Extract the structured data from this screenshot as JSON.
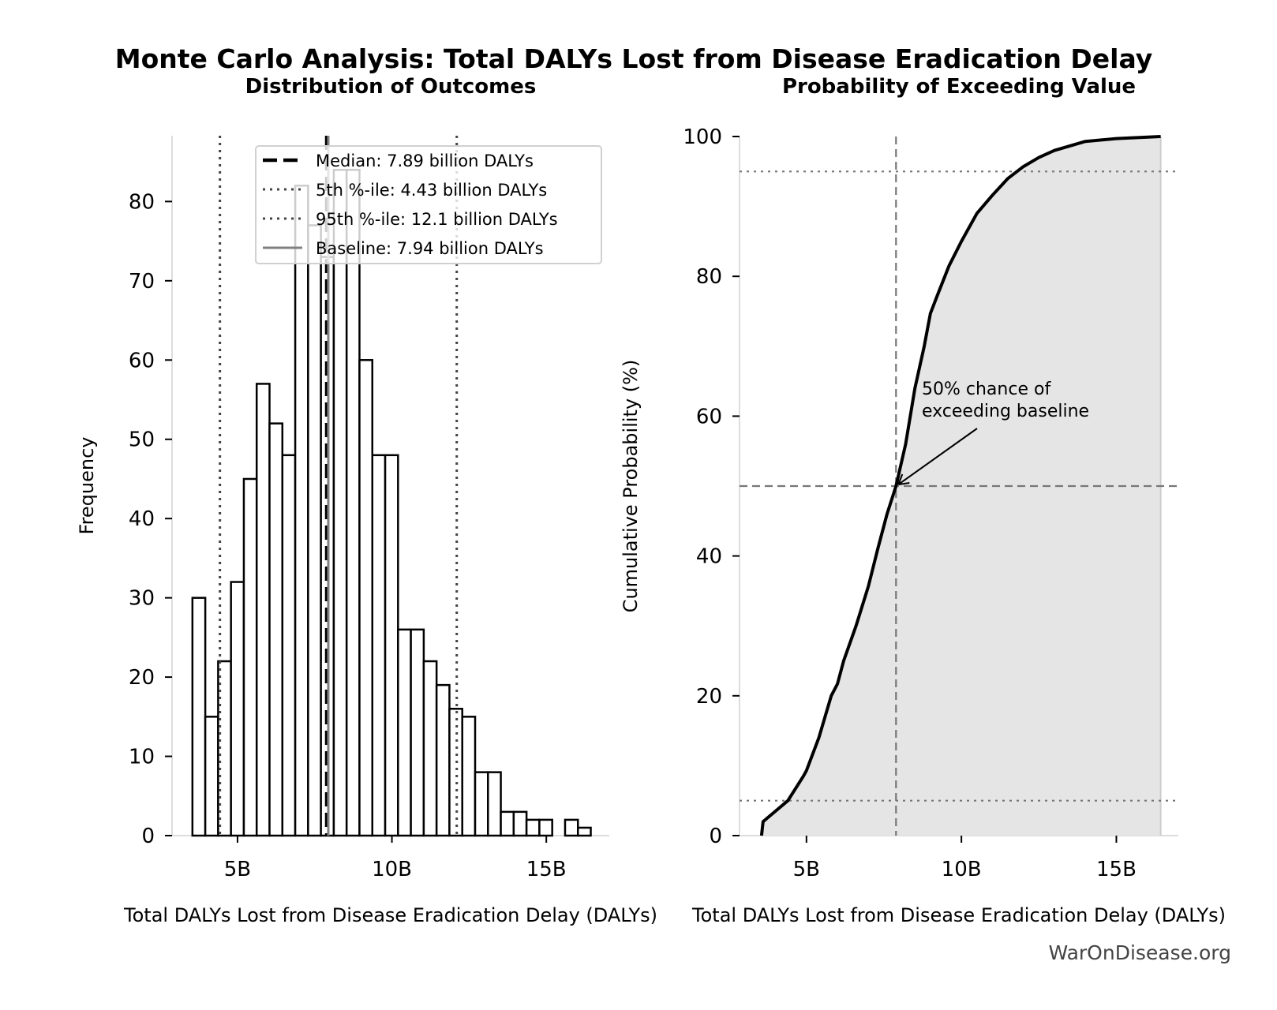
{
  "title": "Monte Carlo Analysis: Total DALYs Lost from Disease Eradication Delay",
  "watermark": "WarOnDisease.org",
  "colors": {
    "bar_edge": "#000000",
    "bar_fill": "#ffffff",
    "cdf_fill": "#e5e5e5",
    "reference_gray": "#777777",
    "spine": "#dddddd"
  },
  "chart_data": [
    {
      "type": "bar",
      "subtype": "histogram",
      "title": "Distribution of Outcomes",
      "xlabel": "Total DALYs Lost from Disease Eradication Delay (DALYs)",
      "ylabel": "Frequency",
      "xlim": [
        2.88,
        17.04
      ],
      "ylim": [
        0,
        88.3
      ],
      "x_unit": "billion DALYs",
      "xticks": [
        {
          "value": 5,
          "label": "5B"
        },
        {
          "value": 10,
          "label": "10B"
        },
        {
          "value": 15,
          "label": "15B"
        }
      ],
      "yticks": [
        0,
        10,
        20,
        30,
        40,
        50,
        60,
        70,
        80
      ],
      "bin_start": 3.54,
      "bin_end": 16.44,
      "counts": [
        30,
        15,
        22,
        32,
        45,
        57,
        52,
        48,
        82,
        77,
        73,
        84,
        84,
        60,
        48,
        48,
        26,
        26,
        22,
        19,
        16,
        15,
        8,
        8,
        3,
        3,
        2,
        2,
        0,
        2,
        1
      ],
      "reference_lines": [
        {
          "label": "Median: 7.89 billion DALYs",
          "value": 7.89,
          "style": "dashed",
          "color": "#000000"
        },
        {
          "label": "5th %-ile: 4.43 billion DALYs",
          "value": 4.43,
          "style": "dotted",
          "color": "#444444"
        },
        {
          "label": "95th %-ile: 12.1 billion DALYs",
          "value": 12.1,
          "style": "dotted",
          "color": "#444444"
        },
        {
          "label": "Baseline: 7.94 billion DALYs",
          "value": 7.94,
          "style": "solid",
          "color": "#808080"
        }
      ],
      "legend": "top-center",
      "grid": false
    },
    {
      "type": "area",
      "subtype": "cumulative distribution",
      "title": "Probability of Exceeding Value",
      "xlabel": "Total DALYs Lost from Disease Eradication Delay (DALYs)",
      "ylabel": "Cumulative Probability (%)",
      "xlim": [
        2.84,
        17.0
      ],
      "ylim": [
        0,
        100
      ],
      "x_unit": "billion DALYs",
      "xticks": [
        {
          "value": 5,
          "label": "5B"
        },
        {
          "value": 10,
          "label": "10B"
        },
        {
          "value": 15,
          "label": "15B"
        }
      ],
      "yticks": [
        0,
        20,
        40,
        60,
        80,
        100
      ],
      "x": [
        3.55,
        3.6,
        4.0,
        4.4,
        4.9,
        5.0,
        5.4,
        5.8,
        6.0,
        6.2,
        6.6,
        7.0,
        7.3,
        7.6,
        7.89,
        8.2,
        8.5,
        8.8,
        9.0,
        9.2,
        9.6,
        10.0,
        10.5,
        11.0,
        11.5,
        12.0,
        12.5,
        13.0,
        14.0,
        15.0,
        16.43
      ],
      "y": [
        0,
        2,
        3.5,
        5,
        8.5,
        9.3,
        14,
        20,
        21.7,
        25,
        30,
        35.7,
        41,
        46,
        50,
        56,
        64,
        70,
        74.7,
        77,
        81.5,
        85,
        89,
        91.6,
        94,
        95.7,
        97,
        98,
        99.3,
        99.7,
        100
      ],
      "reference_lines": [
        {
          "axis": "y",
          "value": 95,
          "style": "dotted"
        },
        {
          "axis": "y",
          "value": 5,
          "style": "dotted"
        },
        {
          "axis": "y",
          "value": 50,
          "style": "dashed"
        },
        {
          "axis": "x",
          "value": 7.89,
          "style": "dashed"
        }
      ],
      "annotation": {
        "lines": [
          "50% chance of",
          "exceeding baseline"
        ],
        "point": [
          7.89,
          50
        ]
      },
      "grid": false
    }
  ]
}
